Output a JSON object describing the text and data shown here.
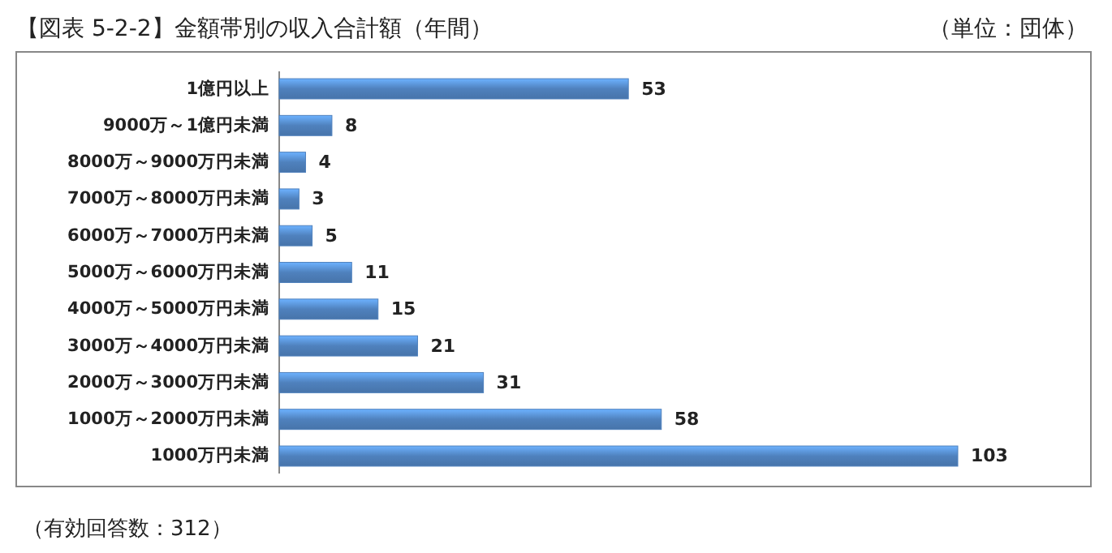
{
  "chart_data": {
    "type": "bar",
    "orientation": "horizontal",
    "title": "【図表 5-2-2】金額帯別の収入合計額（年間）",
    "annotations": [
      "（単位：団体）",
      "（有効回答数：312）"
    ],
    "categories": [
      "1億円以上",
      "9000万～1億円未満",
      "8000万～9000万円未満",
      "7000万～8000万円未満",
      "6000万～7000万円未満",
      "5000万～6000万円未満",
      "4000万～5000万円未満",
      "3000万～4000万円未満",
      "2000万～3000万円未満",
      "1000万～2000万円未満",
      "1000万円未満"
    ],
    "values": [
      53,
      8,
      4,
      3,
      5,
      11,
      15,
      21,
      31,
      58,
      103
    ],
    "color": "#4f81bd",
    "data_labels": true
  }
}
